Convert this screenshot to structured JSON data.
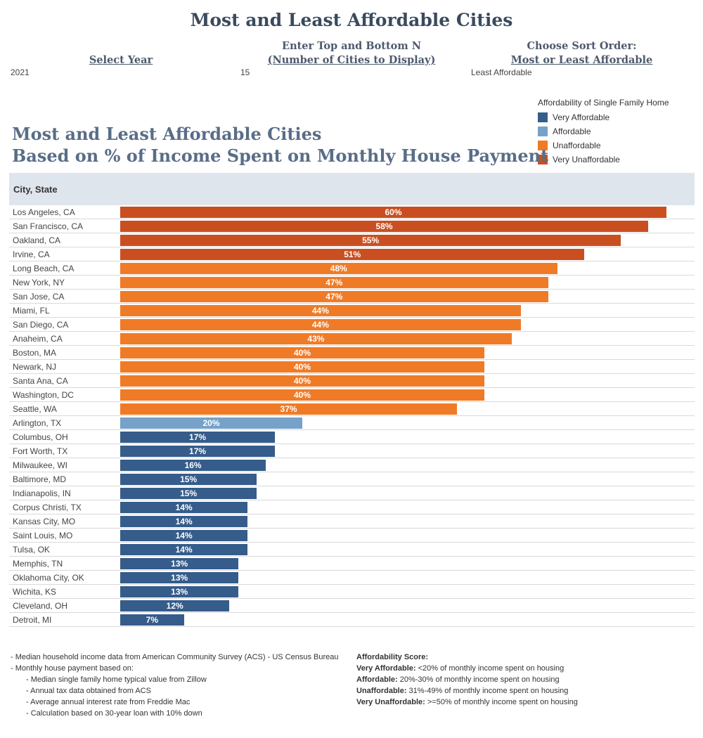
{
  "main_title": "Most and Least Affordable Cities",
  "controls": [
    {
      "label_lines": [
        "Select Year"
      ],
      "value": "2021"
    },
    {
      "label_lines": [
        "Enter Top and Bottom N",
        "(Number of Cities to Display)"
      ],
      "value": "15"
    },
    {
      "label_lines": [
        "Choose Sort Order:",
        "Most or Least Affordable"
      ],
      "value": "Least Affordable"
    }
  ],
  "legend": {
    "title": "Affordability of Single Family Home",
    "items": [
      {
        "label": "Very Affordable",
        "color": "#355c8a"
      },
      {
        "label": "Affordable",
        "color": "#76a2c9"
      },
      {
        "label": "Unaffordable",
        "color": "#f07b27"
      },
      {
        "label": "Very Unaffordable",
        "color": "#c94f21"
      }
    ]
  },
  "chart_header": "City, State",
  "chart_data": {
    "type": "bar",
    "orientation": "horizontal",
    "title_lines": [
      "Most and Least Affordable Cities",
      "Based on % of Income Spent on Monthly House Payment"
    ],
    "categories": [
      "Los Angeles, CA",
      "San Francisco, CA",
      "Oakland, CA",
      "Irvine, CA",
      "Long Beach, CA",
      "New York, NY",
      "San Jose, CA",
      "Miami, FL",
      "San Diego, CA",
      "Anaheim, CA",
      "Boston, MA",
      "Newark, NJ",
      "Santa Ana, CA",
      "Washington, DC",
      "Seattle, WA",
      "Arlington, TX",
      "Columbus, OH",
      "Fort Worth, TX",
      "Milwaukee, WI",
      "Baltimore, MD",
      "Indianapolis, IN",
      "Corpus Christi, TX",
      "Kansas City, MO",
      "Saint Louis, MO",
      "Tulsa, OK",
      "Memphis, TN",
      "Oklahoma City, OK",
      "Wichita, KS",
      "Cleveland, OH",
      "Detroit, MI"
    ],
    "values": [
      60,
      58,
      55,
      51,
      48,
      47,
      47,
      44,
      44,
      43,
      40,
      40,
      40,
      40,
      37,
      20,
      17,
      17,
      16,
      15,
      15,
      14,
      14,
      14,
      14,
      13,
      13,
      13,
      12,
      7
    ],
    "labels": [
      "60%",
      "58%",
      "55%",
      "51%",
      "48%",
      "47%",
      "47%",
      "44%",
      "44%",
      "43%",
      "40%",
      "40%",
      "40%",
      "40%",
      "37%",
      "20%",
      "17%",
      "17%",
      "16%",
      "15%",
      "15%",
      "14%",
      "14%",
      "14%",
      "14%",
      "13%",
      "13%",
      "13%",
      "12%",
      "7%"
    ],
    "classes": [
      "Very Unaffordable",
      "Very Unaffordable",
      "Very Unaffordable",
      "Very Unaffordable",
      "Unaffordable",
      "Unaffordable",
      "Unaffordable",
      "Unaffordable",
      "Unaffordable",
      "Unaffordable",
      "Unaffordable",
      "Unaffordable",
      "Unaffordable",
      "Unaffordable",
      "Unaffordable",
      "Affordable",
      "Very Affordable",
      "Very Affordable",
      "Very Affordable",
      "Very Affordable",
      "Very Affordable",
      "Very Affordable",
      "Very Affordable",
      "Very Affordable",
      "Very Affordable",
      "Very Affordable",
      "Very Affordable",
      "Very Affordable",
      "Very Affordable",
      "Very Affordable"
    ],
    "xlim": [
      0,
      60
    ]
  },
  "notes": {
    "lines": [
      "- Median household income data from American Community Survey (ACS) - US Census Bureau",
      "- Monthly house payment based on:"
    ],
    "sub_lines": [
      "- Median single family home typical value from Zillow",
      "- Annual tax data obtained from ACS",
      "- Average annual interest rate from Freddie Mac",
      "- Calculation based on 30-year loan with 10% down"
    ]
  },
  "score": {
    "title": "Affordability Score:",
    "items": [
      {
        "label": "Very Affordable:",
        "text": " <20% of monthly income  spent on housing"
      },
      {
        "label": "Affordable:",
        "text": " 20%-30% of monthly income spent on housing"
      },
      {
        "label": "Unaffordable:",
        "text": " 31%-49% of monthly income spent on housing"
      },
      {
        "label": "Very Unaffordable:",
        "text": " >=50% of monthly income spent on housing"
      }
    ]
  }
}
